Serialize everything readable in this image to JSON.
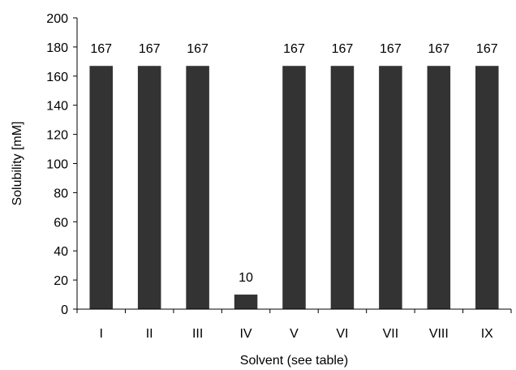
{
  "chart_data": {
    "type": "bar",
    "categories": [
      "I",
      "II",
      "III",
      "IV",
      "V",
      "VI",
      "VII",
      "VIII",
      "IX"
    ],
    "values": [
      167,
      167,
      167,
      10,
      167,
      167,
      167,
      167,
      167
    ],
    "data_labels": [
      "167",
      "167",
      "167",
      "10",
      "167",
      "167",
      "167",
      "167",
      "167"
    ],
    "xlabel": "Solvent (see table)",
    "ylabel": "Solubility [mM]",
    "ylim": [
      0,
      200
    ],
    "yticks": [
      0,
      20,
      40,
      60,
      80,
      100,
      120,
      140,
      160,
      180,
      200
    ],
    "grid": false,
    "legend": "none",
    "bar_color": "#333333"
  }
}
